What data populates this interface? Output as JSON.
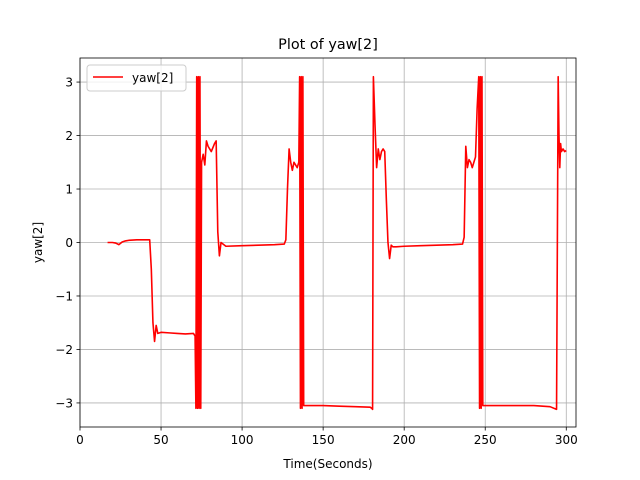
{
  "chart_data": {
    "type": "line",
    "title": "Plot of yaw[2]",
    "xlabel": "Time(Seconds)",
    "ylabel": "yaw[2]",
    "xlim": [
      0,
      306
    ],
    "ylim": [
      -3.45,
      3.45
    ],
    "xticks": [
      0,
      50,
      100,
      150,
      200,
      250,
      300
    ],
    "xtick_labels": [
      "0",
      "50",
      "100",
      "150",
      "200",
      "250",
      "300"
    ],
    "yticks": [
      -3,
      -2,
      -1,
      0,
      1,
      2,
      3
    ],
    "ytick_labels": [
      "−3",
      "−2",
      "−1",
      "0",
      "1",
      "2",
      "3"
    ],
    "grid": true,
    "legend_position": "top-left",
    "series": [
      {
        "name": "yaw[2]",
        "color": "#ff0000",
        "x": [
          17,
          20,
          22,
          24,
          26,
          28,
          30,
          35,
          40,
          43,
          44,
          45,
          46,
          47,
          48,
          50,
          55,
          60,
          65,
          70,
          71,
          71.5,
          72,
          72.5,
          73,
          73.5,
          74,
          74.5,
          75,
          76,
          77,
          78,
          79,
          81,
          83,
          84,
          85,
          86,
          87,
          90,
          100,
          110,
          120,
          126,
          127,
          128,
          129,
          130,
          131,
          132,
          133,
          134,
          135,
          135.5,
          136,
          136.5,
          137,
          137.5,
          138,
          140,
          150,
          160,
          170,
          179,
          180,
          180.5,
          181,
          182,
          183,
          184,
          185,
          186,
          187,
          188,
          189,
          190,
          191,
          192,
          193,
          195,
          200,
          210,
          220,
          230,
          236,
          237,
          238,
          239,
          240,
          241,
          242,
          243,
          244,
          245,
          246,
          246.5,
          247,
          247.5,
          248,
          248.5,
          249,
          250,
          260,
          270,
          280,
          290,
          294,
          295,
          295.5,
          296,
          296.5,
          297,
          298,
          299,
          300
        ],
        "y": [
          0.0,
          0.0,
          -0.01,
          -0.04,
          0.01,
          0.03,
          0.04,
          0.05,
          0.05,
          0.05,
          -0.5,
          -1.5,
          -1.85,
          -1.55,
          -1.7,
          -1.68,
          -1.69,
          -1.7,
          -1.71,
          -1.7,
          -1.75,
          -3.1,
          3.1,
          -3.1,
          3.1,
          -3.1,
          3.1,
          -3.1,
          1.5,
          1.65,
          1.45,
          1.9,
          1.8,
          1.7,
          1.85,
          1.9,
          0.2,
          -0.25,
          0.0,
          -0.07,
          -0.06,
          -0.05,
          -0.04,
          -0.03,
          0.05,
          1.0,
          1.75,
          1.5,
          1.35,
          1.5,
          1.45,
          1.4,
          1.5,
          3.1,
          -3.1,
          3.1,
          -3.1,
          3.1,
          -3.05,
          -3.05,
          -3.05,
          -3.06,
          -3.07,
          -3.08,
          -3.1,
          -3.12,
          3.1,
          2.2,
          1.4,
          1.75,
          1.55,
          1.7,
          1.75,
          1.7,
          0.8,
          0.0,
          -0.3,
          -0.05,
          -0.08,
          -0.08,
          -0.07,
          -0.06,
          -0.05,
          -0.04,
          -0.03,
          0.1,
          1.8,
          1.4,
          1.55,
          1.5,
          1.4,
          1.5,
          1.6,
          2.5,
          3.1,
          -3.1,
          3.1,
          -3.1,
          3.1,
          -3.05,
          -3.05,
          -3.05,
          -3.05,
          -3.05,
          -3.05,
          -3.07,
          -3.12,
          3.1,
          2.0,
          1.4,
          1.85,
          1.7,
          1.75,
          1.7,
          1.72
        ]
      }
    ]
  }
}
